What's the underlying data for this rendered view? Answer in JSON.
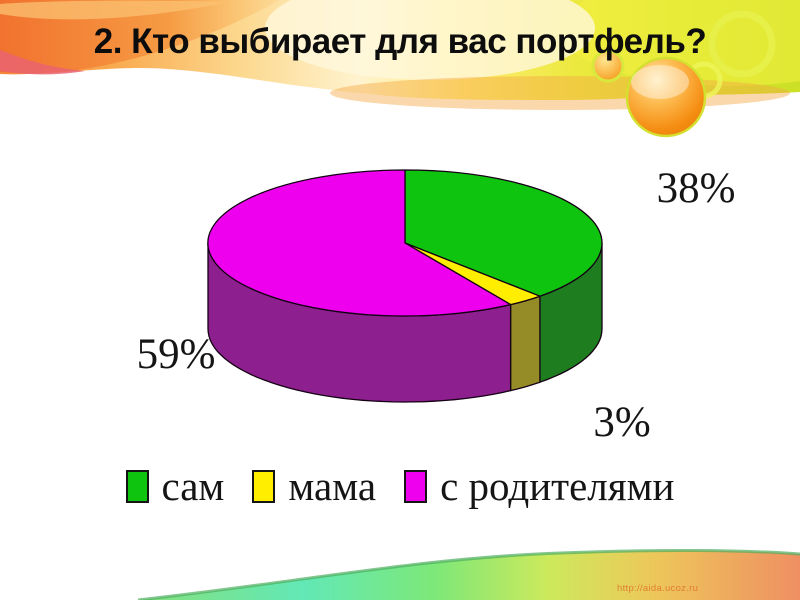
{
  "slide": {
    "title": "2. Кто выбирает для вас портфель?",
    "watermark": "http://aida.ucoz.ru"
  },
  "chart_data": {
    "type": "pie",
    "style": "3d",
    "title": "2. Кто выбирает для вас портфель?",
    "categories": [
      "сам",
      "мама",
      "с родителями"
    ],
    "values": [
      38,
      3,
      59
    ],
    "labels": [
      "38%",
      "3%",
      "59%"
    ],
    "unit": "%",
    "colors": [
      "#0fc40f",
      "#ffee00",
      "#ee00ee"
    ],
    "side_colors": [
      "#1e7d1e",
      "#958c28",
      "#8e1f8e"
    ],
    "legend_position": "bottom",
    "start_angle": "top",
    "direction": "clockwise"
  }
}
